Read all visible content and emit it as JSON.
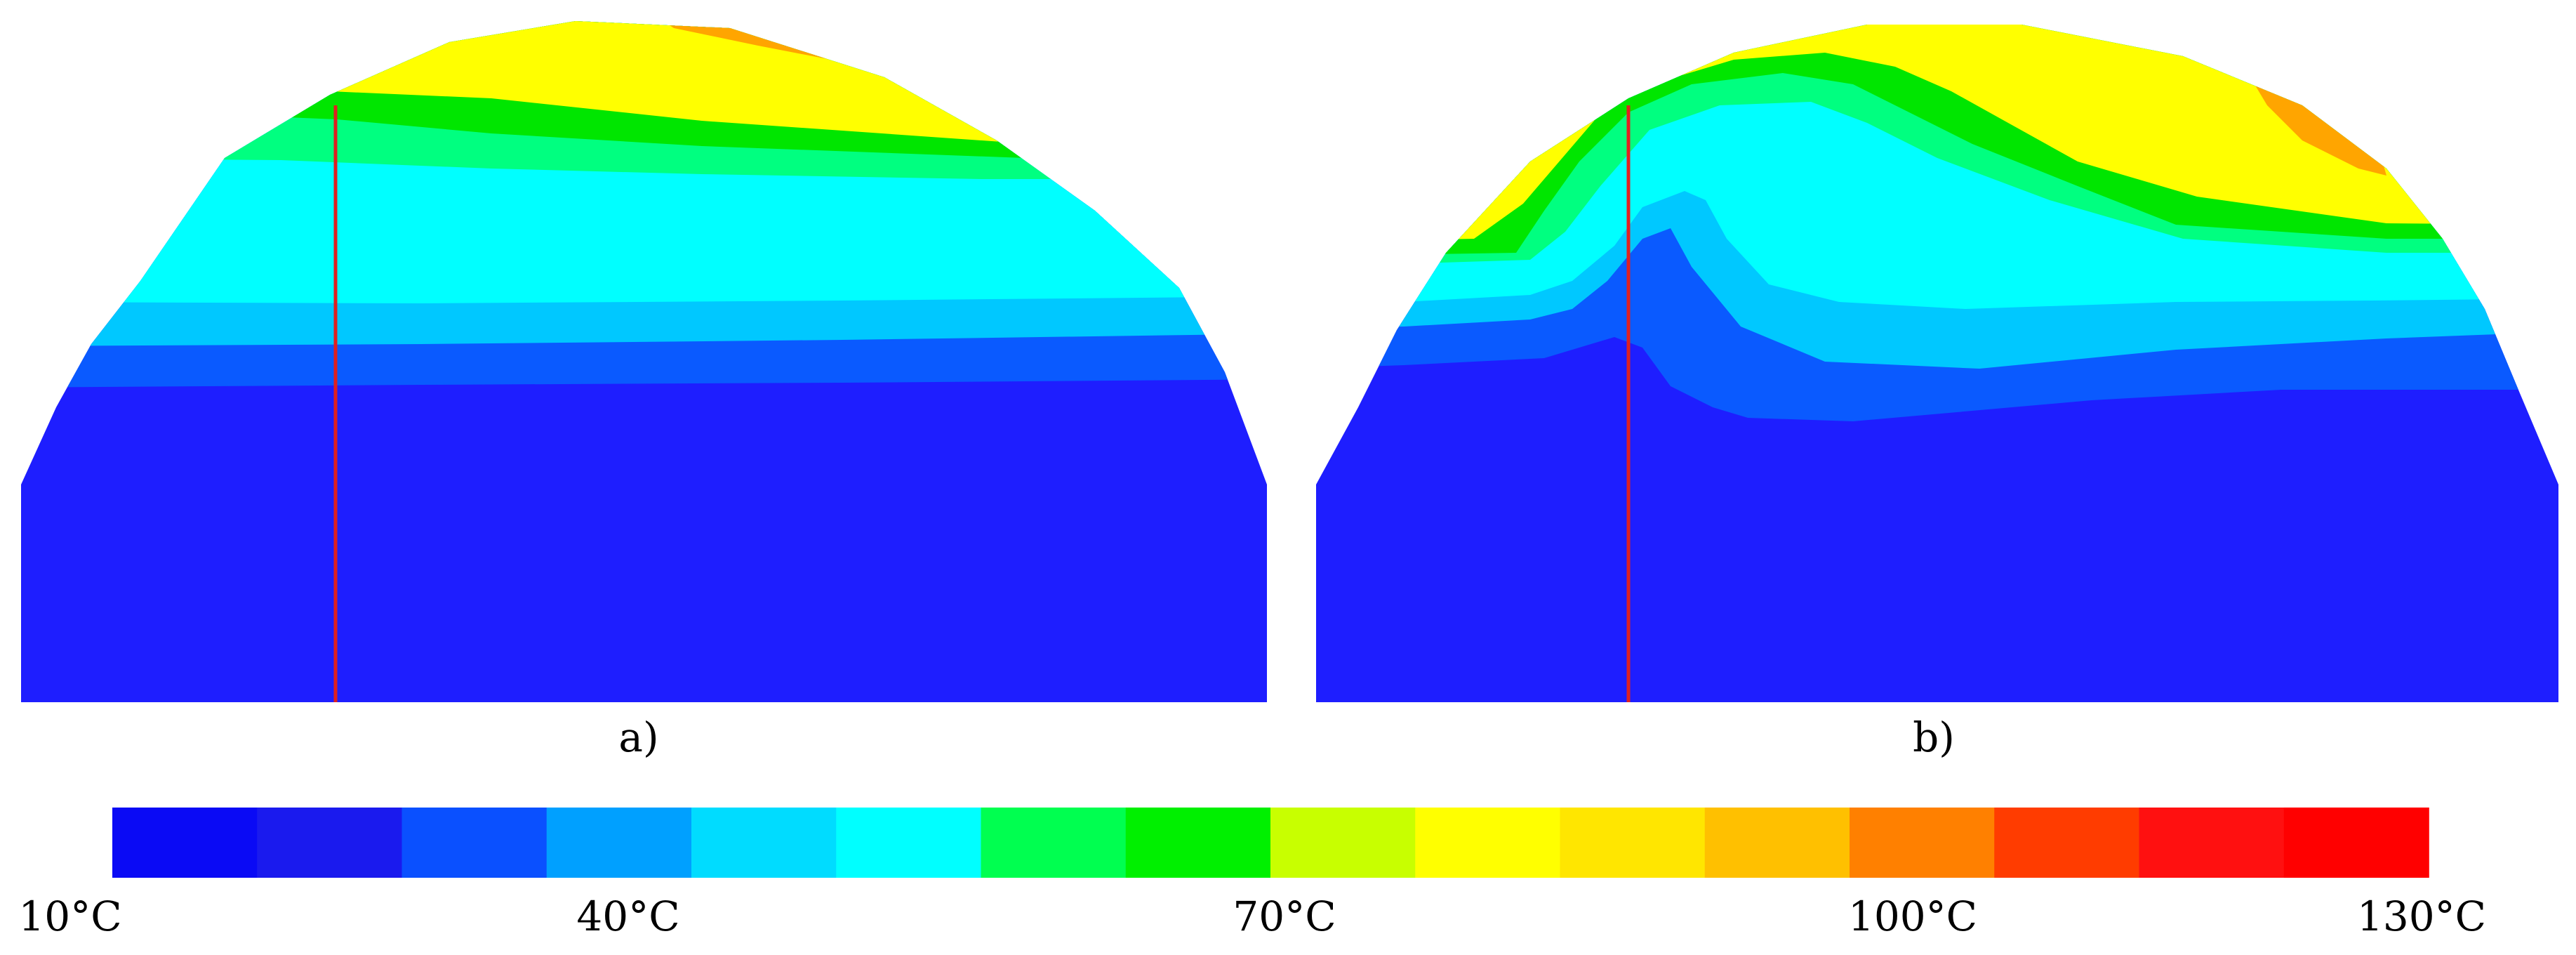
{
  "panels": [
    {
      "label": "a)"
    },
    {
      "label": "b)"
    }
  ],
  "colorbar": {
    "labels": [
      "10°C",
      "40°C",
      "70°C",
      "100°C",
      "130°C"
    ],
    "colors": [
      "#0a0af5",
      "#1a1aee",
      "#0a50ff",
      "#00a0ff",
      "#00dcff",
      "#00ffff",
      "#00ff50",
      "#00f000",
      "#c8ff00",
      "#ffff00",
      "#ffe600",
      "#ffc000",
      "#ff8000",
      "#ff3c00",
      "#ff1010",
      "#ff0000"
    ]
  },
  "colors": {
    "level_10": "#1e1eff",
    "level_20": "#0a5aff",
    "level_30": "#00c8ff",
    "level_40": "#00ffff",
    "level_60": "#00ff80",
    "level_70": "#00e600",
    "level_90": "#ffff00",
    "level_100": "#ffa500",
    "level_120": "#ff3030",
    "probe_line": "#e02020"
  }
}
